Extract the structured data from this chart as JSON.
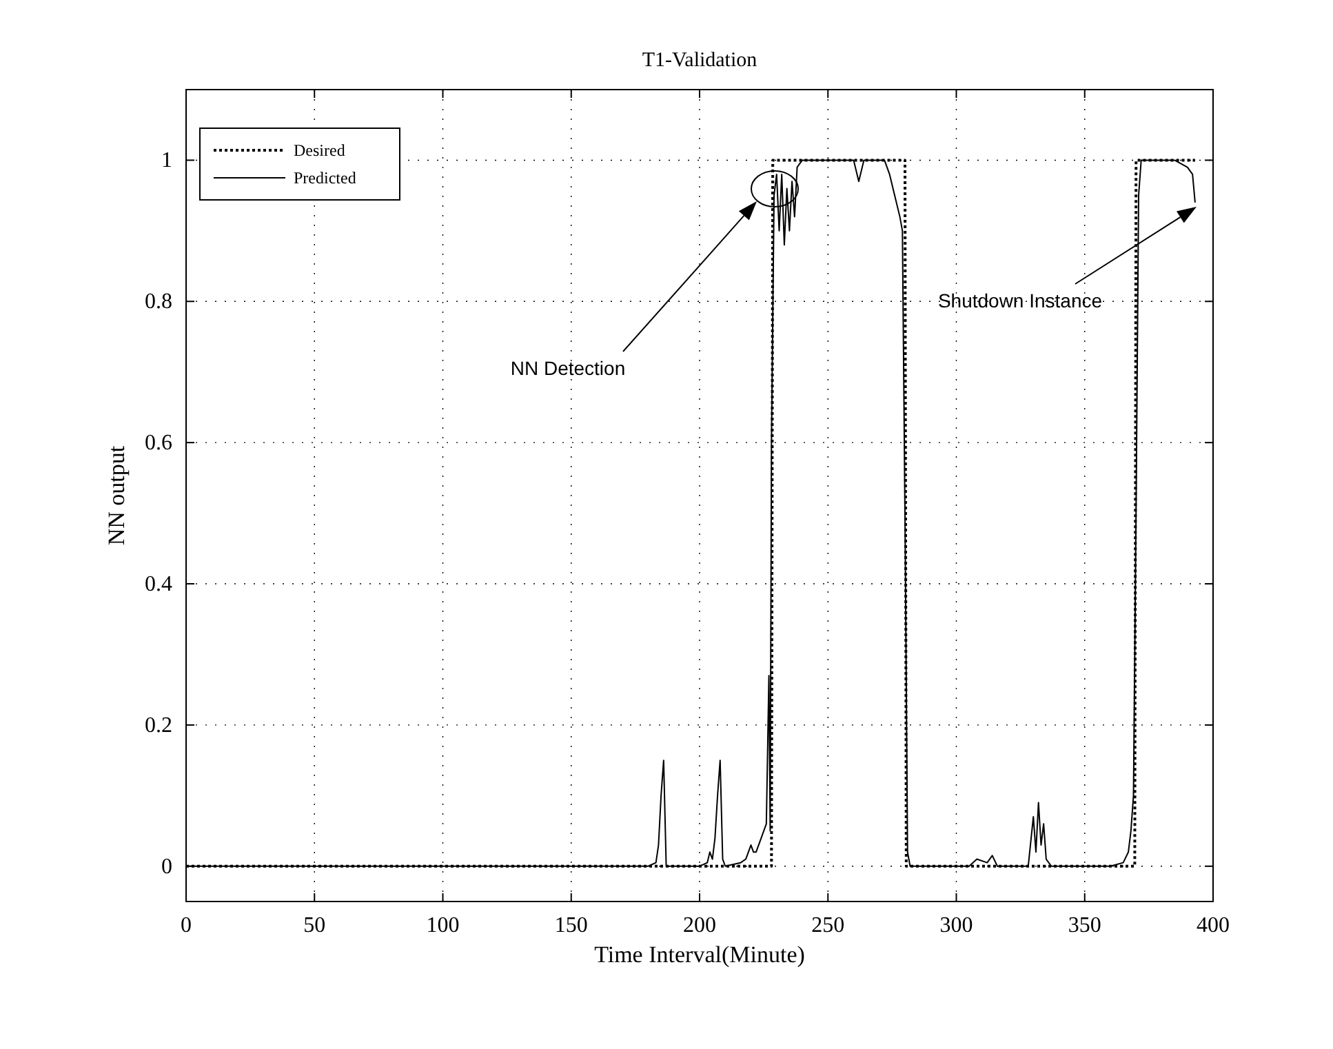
{
  "chart_data": {
    "type": "line",
    "title": "T1-Validation",
    "xlabel": "Time Interval(Minute)",
    "ylabel": "NN output",
    "xlim": [
      0,
      400
    ],
    "xticks": [
      0,
      50,
      100,
      150,
      200,
      250,
      300,
      350,
      400
    ],
    "ylim": [
      -0.05,
      1.1
    ],
    "yticks": [
      0,
      0.2,
      0.4,
      0.6,
      0.8,
      1
    ],
    "grid": true,
    "legend": "top left",
    "series": [
      {
        "name": "Desired",
        "color": "#000000",
        "line_style": "dotted",
        "x": [
          0,
          228,
          228.5,
          280,
          280.5,
          369.5,
          370,
          393
        ],
        "values": [
          0,
          0,
          1,
          1,
          0,
          0,
          1,
          1
        ]
      },
      {
        "name": "Predicted",
        "color": "#000000",
        "line_style": "solid",
        "x": [
          0,
          180,
          183,
          184,
          185,
          186,
          187,
          188,
          200,
          203,
          204,
          205,
          206,
          207,
          208,
          209,
          210,
          216,
          218,
          220,
          221,
          222,
          224,
          226,
          227,
          227.5,
          228,
          229,
          230,
          231,
          232,
          233,
          234,
          235,
          236,
          237,
          238,
          240,
          245,
          255,
          260,
          262,
          264,
          268,
          272,
          274,
          276,
          278,
          279,
          280,
          281,
          282,
          285,
          305,
          308,
          312,
          314,
          316,
          320,
          328,
          330,
          331,
          332,
          333,
          334,
          335,
          337,
          340,
          360,
          365,
          367,
          368,
          369,
          370,
          371,
          372,
          375,
          385,
          390,
          392,
          393
        ],
        "values": [
          0,
          0,
          0.005,
          0.03,
          0.1,
          0.15,
          0,
          0,
          0,
          0.005,
          0.02,
          0.01,
          0.04,
          0.1,
          0.15,
          0.01,
          0,
          0.005,
          0.01,
          0.03,
          0.02,
          0.02,
          0.04,
          0.06,
          0.27,
          0.05,
          0.6,
          0.95,
          0.98,
          0.9,
          0.98,
          0.88,
          0.96,
          0.9,
          0.97,
          0.92,
          0.99,
          1,
          1,
          1,
          1,
          0.97,
          1,
          1,
          1,
          0.98,
          0.95,
          0.92,
          0.9,
          0.5,
          0.02,
          0,
          0,
          0,
          0.01,
          0.005,
          0.015,
          0,
          0,
          0,
          0.07,
          0.02,
          0.09,
          0.03,
          0.06,
          0.01,
          0,
          0,
          0,
          0.005,
          0.02,
          0.05,
          0.1,
          0.5,
          0.95,
          1,
          1,
          1,
          0.99,
          0.98,
          0.94
        ]
      }
    ],
    "annotations": [
      "NN Detection",
      "Shutdown Instance"
    ]
  }
}
